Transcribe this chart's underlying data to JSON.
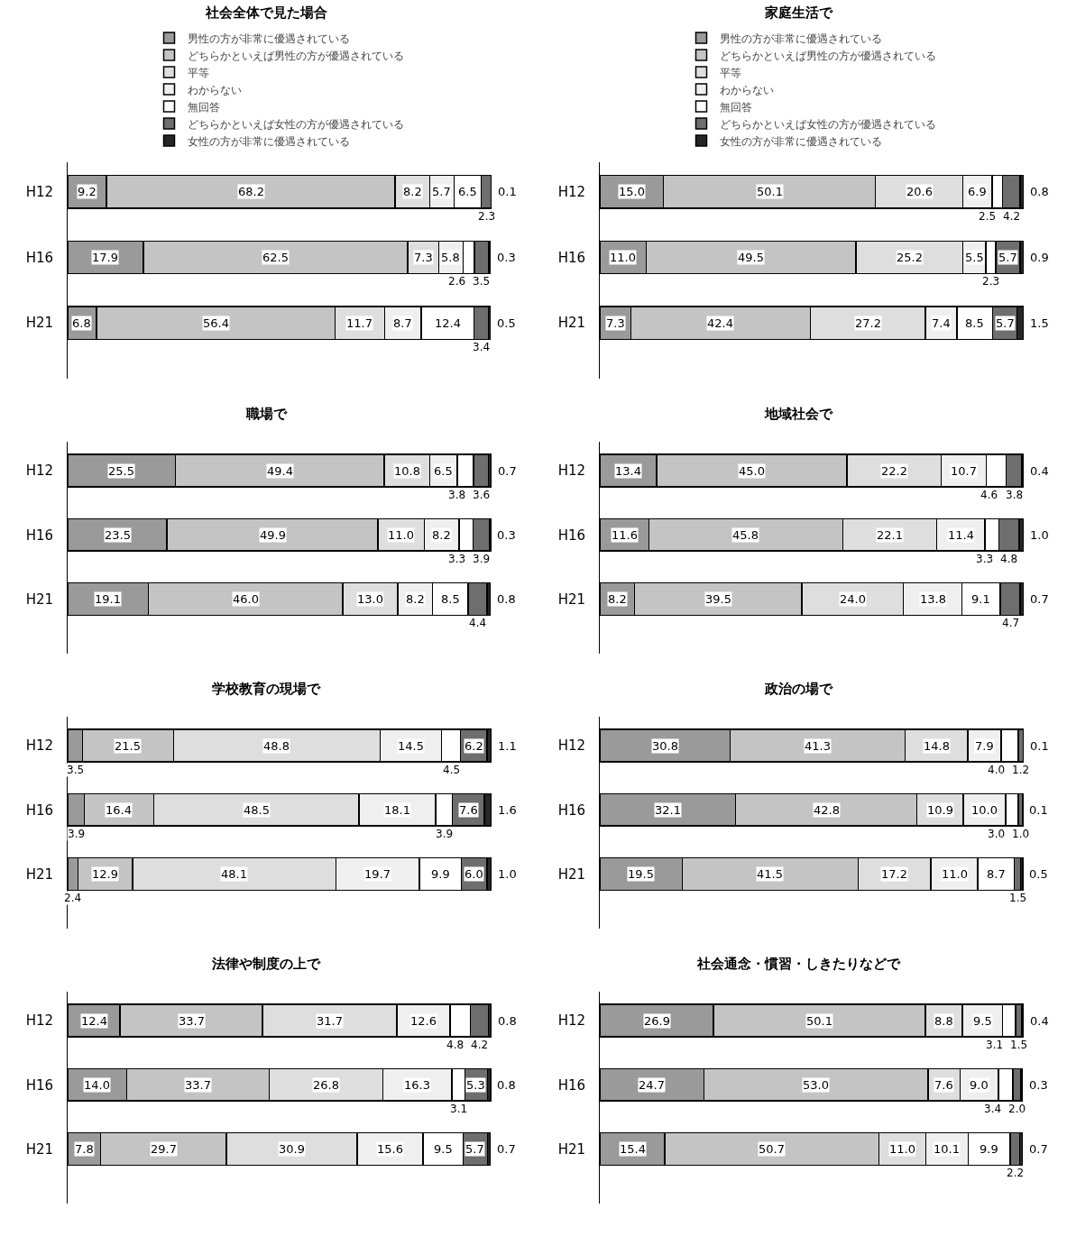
{
  "chart_data": [
    {
      "type": "bar",
      "orientation": "horizontal",
      "stacked": true,
      "legend": "top",
      "title": "社会全体で見た場合",
      "categories": [
        "H12",
        "H16",
        "H21"
      ],
      "series": [
        {
          "name": "男性の方が非常に優遇されている",
          "color": "#9a9a9a",
          "values": [
            9.2,
            17.9,
            6.8
          ],
          "value_labels": [
            "9.2",
            "17.9",
            "6.8"
          ]
        },
        {
          "name": "どちらかといえば男性の方が優遇されている",
          "color": "#c4c4c4",
          "values": [
            68.2,
            62.5,
            56.4
          ],
          "value_labels": [
            "68.2",
            "62.5",
            "56.4"
          ]
        },
        {
          "name": "平等",
          "color": "#dedede",
          "values": [
            8.2,
            7.3,
            11.7
          ],
          "value_labels": [
            "8.2",
            "7.3",
            "11.7"
          ]
        },
        {
          "name": "わからない",
          "color": "#efefef",
          "values": [
            5.7,
            5.8,
            8.7
          ],
          "value_labels": [
            "5.7",
            "5.8",
            "8.7"
          ]
        },
        {
          "name": "無回答",
          "color": "#ffffff",
          "values": [
            6.5,
            2.6,
            12.4
          ],
          "value_labels": [
            "6.5",
            "2.6",
            "12.4"
          ]
        },
        {
          "name": "どちらかといえば女性の方が優遇されている",
          "color": "#6e6e6e",
          "values": [
            2.3,
            3.5,
            3.4
          ],
          "value_labels": [
            "2.3",
            "3.5",
            "3.4"
          ]
        },
        {
          "name": "女性の方が非常に優遇されている",
          "color": "#262626",
          "values": [
            0.1,
            0.3,
            0.5
          ],
          "value_labels": [
            "0.1",
            "0.3",
            "0.5"
          ]
        }
      ]
    },
    {
      "type": "bar",
      "orientation": "horizontal",
      "stacked": true,
      "legend": "top",
      "title": "家庭生活で",
      "categories": [
        "H12",
        "H16",
        "H21"
      ],
      "series": [
        {
          "name": "男性の方が非常に優遇されている",
          "color": "#9a9a9a",
          "values": [
            15.0,
            11.0,
            7.3
          ],
          "value_labels": [
            "15.0",
            "11.0",
            "7.3"
          ]
        },
        {
          "name": "どちらかといえば男性の方が優遇されている",
          "color": "#c4c4c4",
          "values": [
            50.1,
            49.5,
            42.4
          ],
          "value_labels": [
            "50.1",
            "49.5",
            "42.4"
          ]
        },
        {
          "name": "平等",
          "color": "#dedede",
          "values": [
            20.6,
            25.2,
            27.2
          ],
          "value_labels": [
            "20.6",
            "25.2",
            "27.2"
          ]
        },
        {
          "name": "わからない",
          "color": "#efefef",
          "values": [
            6.9,
            5.5,
            7.4
          ],
          "value_labels": [
            "6.9",
            "5.5",
            "7.4"
          ]
        },
        {
          "name": "無回答",
          "color": "#ffffff",
          "values": [
            2.5,
            2.3,
            8.5
          ],
          "value_labels": [
            "2.5",
            "2.3",
            "8.5"
          ]
        },
        {
          "name": "どちらかといえば女性の方が優遇されている",
          "color": "#6e6e6e",
          "values": [
            4.2,
            5.7,
            5.7
          ],
          "value_labels": [
            "4.2",
            "5.7",
            "5.7"
          ]
        },
        {
          "name": "女性の方が非常に優遇されている",
          "color": "#262626",
          "values": [
            0.8,
            0.9,
            1.5
          ],
          "value_labels": [
            "0.8",
            "0.9",
            "1.5"
          ]
        }
      ]
    },
    {
      "type": "bar",
      "orientation": "horizontal",
      "stacked": true,
      "title": "職場で",
      "categories": [
        "H12",
        "H16",
        "H21"
      ],
      "series": [
        {
          "color": "#9a9a9a",
          "values": [
            25.5,
            23.5,
            19.1
          ],
          "value_labels": [
            "25.5",
            "23.5",
            "19.1"
          ]
        },
        {
          "color": "#c4c4c4",
          "values": [
            49.4,
            49.9,
            46.0
          ],
          "value_labels": [
            "49.4",
            "49.9",
            "46.0"
          ]
        },
        {
          "color": "#dedede",
          "values": [
            10.8,
            11.0,
            13.0
          ],
          "value_labels": [
            "10.8",
            "11.0",
            "13.0"
          ]
        },
        {
          "color": "#efefef",
          "values": [
            6.5,
            8.2,
            8.2
          ],
          "value_labels": [
            "6.5",
            "8.2",
            "8.2"
          ]
        },
        {
          "color": "#ffffff",
          "values": [
            3.8,
            3.3,
            8.5
          ],
          "value_labels": [
            "3.8",
            "3.3",
            "8.5"
          ]
        },
        {
          "color": "#6e6e6e",
          "values": [
            3.6,
            3.9,
            4.4
          ],
          "value_labels": [
            "3.6",
            "3.9",
            "4.4"
          ]
        },
        {
          "color": "#262626",
          "values": [
            0.7,
            0.3,
            0.8
          ],
          "value_labels": [
            "0.7",
            "0.3",
            "0.8"
          ]
        }
      ]
    },
    {
      "type": "bar",
      "orientation": "horizontal",
      "stacked": true,
      "title": "地域社会で",
      "categories": [
        "H12",
        "H16",
        "H21"
      ],
      "series": [
        {
          "color": "#9a9a9a",
          "values": [
            13.4,
            11.6,
            8.2
          ],
          "value_labels": [
            "13.4",
            "11.6",
            "8.2"
          ]
        },
        {
          "color": "#c4c4c4",
          "values": [
            45.0,
            45.8,
            39.5
          ],
          "value_labels": [
            "45.0",
            "45.8",
            "39.5"
          ]
        },
        {
          "color": "#dedede",
          "values": [
            22.2,
            22.1,
            24.0
          ],
          "value_labels": [
            "22.2",
            "22.1",
            "24.0"
          ]
        },
        {
          "color": "#efefef",
          "values": [
            10.7,
            11.4,
            13.8
          ],
          "value_labels": [
            "10.7",
            "11.4",
            "13.8"
          ]
        },
        {
          "color": "#ffffff",
          "values": [
            4.6,
            3.3,
            9.1
          ],
          "value_labels": [
            "4.6",
            "3.3",
            "9.1"
          ]
        },
        {
          "color": "#6e6e6e",
          "values": [
            3.8,
            4.8,
            4.7
          ],
          "value_labels": [
            "3.8",
            "4.8",
            "4.7"
          ]
        },
        {
          "color": "#262626",
          "values": [
            0.4,
            1.0,
            0.7
          ],
          "value_labels": [
            "0.4",
            "1.0",
            "0.7"
          ]
        }
      ]
    },
    {
      "type": "bar",
      "orientation": "horizontal",
      "stacked": true,
      "title": "学校教育の現場で",
      "categories": [
        "H12",
        "H16",
        "H21"
      ],
      "series": [
        {
          "color": "#9a9a9a",
          "values": [
            3.5,
            3.9,
            2.4
          ],
          "value_labels": [
            "3.5",
            "3.9",
            "2.4"
          ]
        },
        {
          "color": "#c4c4c4",
          "values": [
            21.5,
            16.4,
            12.9
          ],
          "value_labels": [
            "21.5",
            "16.4",
            "12.9"
          ]
        },
        {
          "color": "#dedede",
          "values": [
            48.8,
            48.5,
            48.1
          ],
          "value_labels": [
            "48.8",
            "48.5",
            "48.1"
          ]
        },
        {
          "color": "#efefef",
          "values": [
            14.5,
            18.1,
            19.7
          ],
          "value_labels": [
            "14.5",
            "18.1",
            "19.7"
          ]
        },
        {
          "color": "#ffffff",
          "values": [
            4.5,
            3.9,
            9.9
          ],
          "value_labels": [
            "4.5",
            "3.9",
            "9.9"
          ]
        },
        {
          "color": "#6e6e6e",
          "values": [
            6.2,
            7.6,
            6.0
          ],
          "value_labels": [
            "6.2",
            "7.6",
            "6.0"
          ]
        },
        {
          "color": "#262626",
          "values": [
            1.1,
            1.6,
            1.0
          ],
          "value_labels": [
            "1.1",
            "1.6",
            "1.0"
          ]
        }
      ]
    },
    {
      "type": "bar",
      "orientation": "horizontal",
      "stacked": true,
      "title": "政治の場で",
      "categories": [
        "H12",
        "H16",
        "H21"
      ],
      "series": [
        {
          "color": "#9a9a9a",
          "values": [
            30.8,
            32.1,
            19.5
          ],
          "value_labels": [
            "30.8",
            "32.1",
            "19.5"
          ]
        },
        {
          "color": "#c4c4c4",
          "values": [
            41.3,
            42.8,
            41.5
          ],
          "value_labels": [
            "41.3",
            "42.8",
            "41.5"
          ]
        },
        {
          "color": "#dedede",
          "values": [
            14.8,
            10.9,
            17.2
          ],
          "value_labels": [
            "14.8",
            "10.9",
            "17.2"
          ]
        },
        {
          "color": "#efefef",
          "values": [
            7.9,
            10.0,
            11.0
          ],
          "value_labels": [
            "7.9",
            "10.0",
            "11.0"
          ]
        },
        {
          "color": "#ffffff",
          "values": [
            4.0,
            3.0,
            8.7
          ],
          "value_labels": [
            "4.0",
            "3.0",
            "8.7"
          ]
        },
        {
          "color": "#6e6e6e",
          "values": [
            1.2,
            1.0,
            1.5
          ],
          "value_labels": [
            "1.2",
            "1.0",
            "1.5"
          ]
        },
        {
          "color": "#262626",
          "values": [
            0.1,
            0.1,
            0.5
          ],
          "value_labels": [
            "0.1",
            "0.1",
            "0.5"
          ]
        }
      ]
    },
    {
      "type": "bar",
      "orientation": "horizontal",
      "stacked": true,
      "title": "法律や制度の上で",
      "categories": [
        "H12",
        "H16",
        "H21"
      ],
      "series": [
        {
          "color": "#9a9a9a",
          "values": [
            12.4,
            14.0,
            7.8
          ],
          "value_labels": [
            "12.4",
            "14.0",
            "7.8"
          ]
        },
        {
          "color": "#c4c4c4",
          "values": [
            33.7,
            33.7,
            29.7
          ],
          "value_labels": [
            "33.7",
            "33.7",
            "29.7"
          ]
        },
        {
          "color": "#dedede",
          "values": [
            31.7,
            26.8,
            30.9
          ],
          "value_labels": [
            "31.7",
            "26.8",
            "30.9"
          ]
        },
        {
          "color": "#efefef",
          "values": [
            12.6,
            16.3,
            15.6
          ],
          "value_labels": [
            "12.6",
            "16.3",
            "15.6"
          ]
        },
        {
          "color": "#ffffff",
          "values": [
            4.8,
            3.1,
            9.5
          ],
          "value_labels": [
            "4.8",
            "3.1",
            "9.5"
          ]
        },
        {
          "color": "#6e6e6e",
          "values": [
            4.2,
            5.3,
            5.7
          ],
          "value_labels": [
            "4.2",
            "5.3",
            "5.7"
          ]
        },
        {
          "color": "#262626",
          "values": [
            0.8,
            0.8,
            0.7
          ],
          "value_labels": [
            "0.8",
            "0.8",
            "0.7"
          ]
        }
      ]
    },
    {
      "type": "bar",
      "orientation": "horizontal",
      "stacked": true,
      "title": "社会通念・慣習・しきたりなどで",
      "categories": [
        "H12",
        "H16",
        "H21"
      ],
      "series": [
        {
          "color": "#9a9a9a",
          "values": [
            26.9,
            24.7,
            15.4
          ],
          "value_labels": [
            "26.9",
            "24.7",
            "15.4"
          ]
        },
        {
          "color": "#c4c4c4",
          "values": [
            50.1,
            53.0,
            50.7
          ],
          "value_labels": [
            "50.1",
            "53.0",
            "50.7"
          ]
        },
        {
          "color": "#dedede",
          "values": [
            8.8,
            7.6,
            11.0
          ],
          "value_labels": [
            "8.8",
            "7.6",
            "11.0"
          ]
        },
        {
          "color": "#efefef",
          "values": [
            9.5,
            9.0,
            10.1
          ],
          "value_labels": [
            "9.5",
            "9.0",
            "10.1"
          ]
        },
        {
          "color": "#ffffff",
          "values": [
            3.1,
            3.4,
            9.9
          ],
          "value_labels": [
            "3.1",
            "3.4",
            "9.9"
          ]
        },
        {
          "color": "#6e6e6e",
          "values": [
            1.5,
            2.0,
            2.2
          ],
          "value_labels": [
            "1.5",
            "2.0",
            "2.2"
          ]
        },
        {
          "color": "#262626",
          "values": [
            0.4,
            0.3,
            0.7
          ],
          "value_labels": [
            "0.4",
            "0.3",
            "0.7"
          ]
        }
      ]
    }
  ]
}
